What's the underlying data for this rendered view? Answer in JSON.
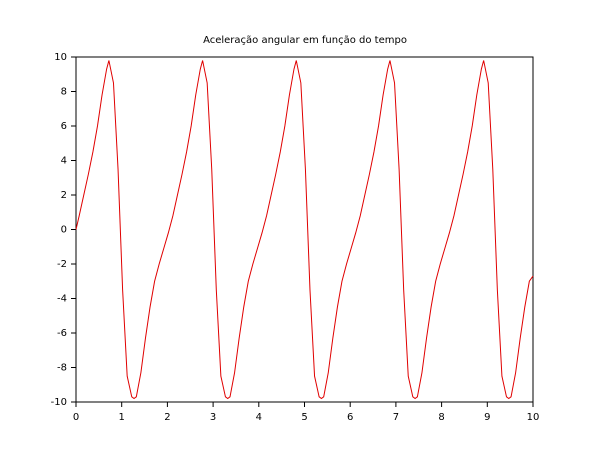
{
  "chart_data": {
    "type": "line",
    "title": "Aceleração angular em função do tempo",
    "x": [
      0,
      0.07,
      0.17,
      0.27,
      0.37,
      0.47,
      0.57,
      0.67,
      0.72,
      0.82,
      0.92,
      1.02,
      1.12,
      1.22,
      1.27,
      1.32,
      1.42,
      1.52,
      1.62,
      1.72,
      1.82,
      1.92,
      2.02,
      2.12,
      2.22,
      2.32,
      2.42,
      2.52,
      2.62,
      2.72,
      2.77,
      2.87,
      2.97,
      3.07,
      3.17,
      3.27,
      3.32,
      3.37,
      3.47,
      3.57,
      3.67,
      3.77,
      3.87,
      3.97,
      4.07,
      4.17,
      4.27,
      4.37,
      4.47,
      4.57,
      4.67,
      4.77,
      4.82,
      4.92,
      5.02,
      5.12,
      5.22,
      5.32,
      5.37,
      5.42,
      5.52,
      5.62,
      5.72,
      5.82,
      5.92,
      6.02,
      6.12,
      6.22,
      6.32,
      6.42,
      6.52,
      6.62,
      6.72,
      6.82,
      6.87,
      6.97,
      7.07,
      7.17,
      7.27,
      7.37,
      7.42,
      7.47,
      7.57,
      7.67,
      7.77,
      7.87,
      7.97,
      8.07,
      8.17,
      8.27,
      8.37,
      8.47,
      8.57,
      8.67,
      8.77,
      8.87,
      8.92,
      9.02,
      9.12,
      9.22,
      9.32,
      9.42,
      9.47,
      9.52,
      9.62,
      9.72,
      9.82,
      9.92,
      10
    ],
    "series": [
      {
        "color": "#e00000",
        "values": [
          0,
          0.8,
          2.0,
          3.2,
          4.5,
          6.0,
          7.8,
          9.3,
          9.8,
          8.5,
          3.5,
          -3.5,
          -8.5,
          -9.7,
          -9.8,
          -9.7,
          -8.3,
          -6.3,
          -4.5,
          -3.0,
          -2.0,
          -1.1,
          -0.2,
          0.8,
          2.0,
          3.2,
          4.5,
          6.0,
          7.8,
          9.3,
          9.8,
          8.5,
          3.5,
          -3.5,
          -8.5,
          -9.7,
          -9.8,
          -9.7,
          -8.3,
          -6.3,
          -4.5,
          -3.0,
          -2.0,
          -1.1,
          -0.2,
          0.8,
          2.0,
          3.2,
          4.5,
          6.0,
          7.8,
          9.3,
          9.8,
          8.5,
          3.5,
          -3.5,
          -8.5,
          -9.7,
          -9.8,
          -9.7,
          -8.3,
          -6.3,
          -4.5,
          -3.0,
          -2.0,
          -1.1,
          -0.2,
          0.8,
          2.0,
          3.2,
          4.5,
          6.0,
          7.8,
          9.3,
          9.8,
          8.5,
          3.5,
          -3.5,
          -8.5,
          -9.7,
          -9.8,
          -9.7,
          -8.3,
          -6.3,
          -4.5,
          -3.0,
          -2.0,
          -1.1,
          -0.2,
          0.8,
          2.0,
          3.2,
          4.5,
          6.0,
          7.8,
          9.3,
          9.8,
          8.5,
          3.5,
          -3.5,
          -8.5,
          -9.7,
          -9.8,
          -9.7,
          -8.3,
          -6.3,
          -4.5,
          -3.0,
          -2.7
        ]
      }
    ],
    "xlim": [
      0,
      10
    ],
    "xticks": [
      0,
      1,
      2,
      3,
      4,
      5,
      6,
      7,
      8,
      9,
      10
    ],
    "ylim": [
      -10,
      10
    ],
    "yticks": [
      -10,
      -8,
      -6,
      -4,
      -2,
      0,
      2,
      4,
      6,
      8,
      10
    ],
    "grid": false
  }
}
